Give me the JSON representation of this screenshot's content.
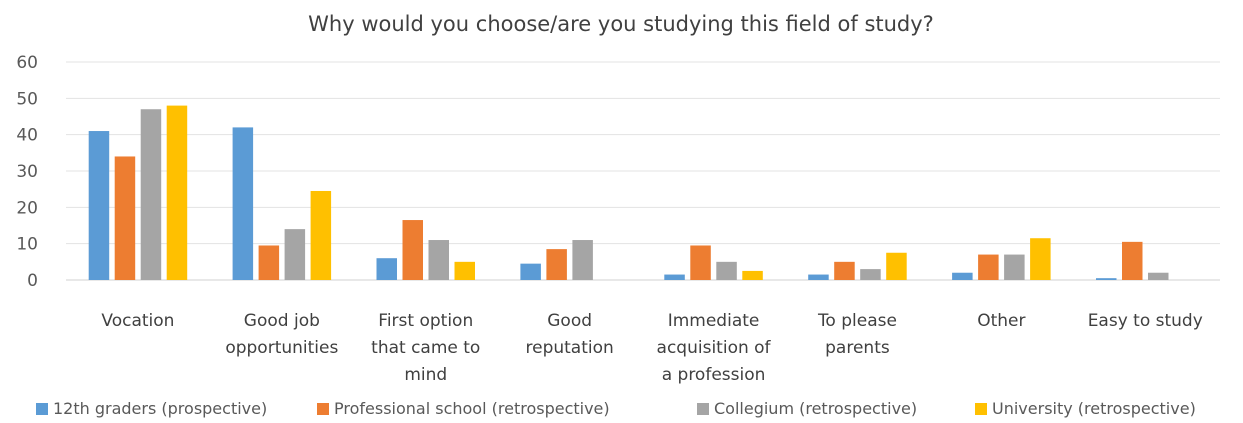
{
  "chart_data": {
    "type": "bar",
    "title": "Why would you choose/are you studying this field of study?",
    "xlabel": "",
    "ylabel": "",
    "ylim": [
      0,
      60
    ],
    "yticks": [
      0,
      10,
      20,
      30,
      40,
      50,
      60
    ],
    "grid": true,
    "legend_position": "bottom",
    "categories": [
      [
        "Vocation"
      ],
      [
        "Good job",
        "opportunities"
      ],
      [
        "First option",
        "that came to",
        "mind"
      ],
      [
        "Good",
        "reputation"
      ],
      [
        "Immediate",
        "acquisition of",
        "a profession"
      ],
      [
        "To please",
        "parents"
      ],
      [
        "Other"
      ],
      [
        "Easy to study"
      ]
    ],
    "series": [
      {
        "name": "12th graders (prospective)",
        "color": "#5b9bd5",
        "values": [
          41,
          42,
          6,
          4.5,
          1.5,
          1.5,
          2,
          0.5
        ]
      },
      {
        "name": "Professional school (retrospective)",
        "color": "#ed7d31",
        "values": [
          34,
          9.5,
          16.5,
          8.5,
          9.5,
          5,
          7,
          10.5
        ]
      },
      {
        "name": "Collegium (retrospective)",
        "color": "#a5a5a5",
        "values": [
          47,
          14,
          11,
          11,
          5,
          3,
          7,
          2
        ]
      },
      {
        "name": "University (retrospective)",
        "color": "#ffc000",
        "values": [
          48,
          24.5,
          5,
          0,
          2.5,
          7.5,
          11.5,
          0
        ]
      }
    ]
  }
}
